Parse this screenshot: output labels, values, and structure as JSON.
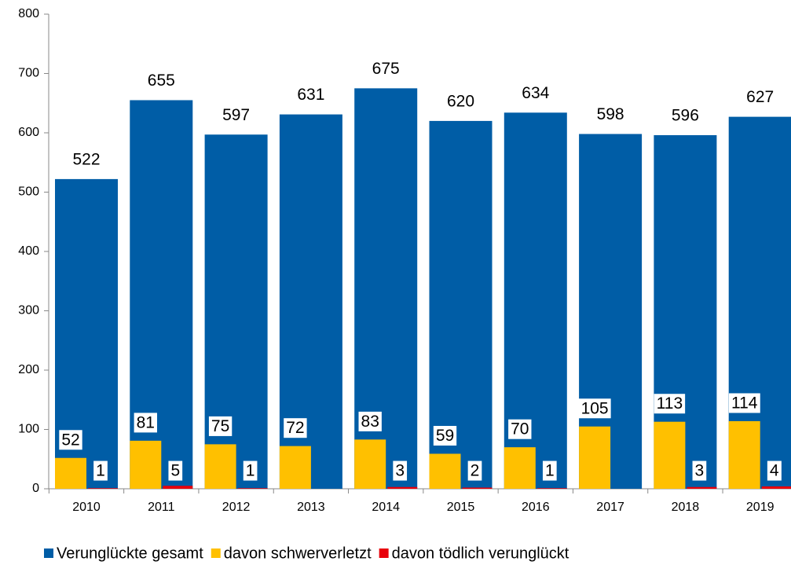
{
  "chart_data": {
    "type": "bar",
    "categories": [
      "2010",
      "2011",
      "2012",
      "2013",
      "2014",
      "2015",
      "2016",
      "2017",
      "2018",
      "2019"
    ],
    "series": [
      {
        "name": "Verunglückte gesamt",
        "color": "#005da6",
        "values": [
          522,
          655,
          597,
          631,
          675,
          620,
          634,
          598,
          596,
          627
        ]
      },
      {
        "name": "davon schwerverletzt",
        "color": "#ffc000",
        "values": [
          52,
          81,
          75,
          72,
          83,
          59,
          70,
          105,
          113,
          114
        ]
      },
      {
        "name": "davon tödlich verunglückt",
        "color": "#e8000b",
        "values": [
          1,
          5,
          1,
          null,
          3,
          2,
          1,
          null,
          3,
          4
        ]
      }
    ],
    "ylim": [
      0,
      800
    ],
    "yticks": [
      0,
      100,
      200,
      300,
      400,
      500,
      600,
      700,
      800
    ],
    "grid": false,
    "legend": "bottom"
  }
}
